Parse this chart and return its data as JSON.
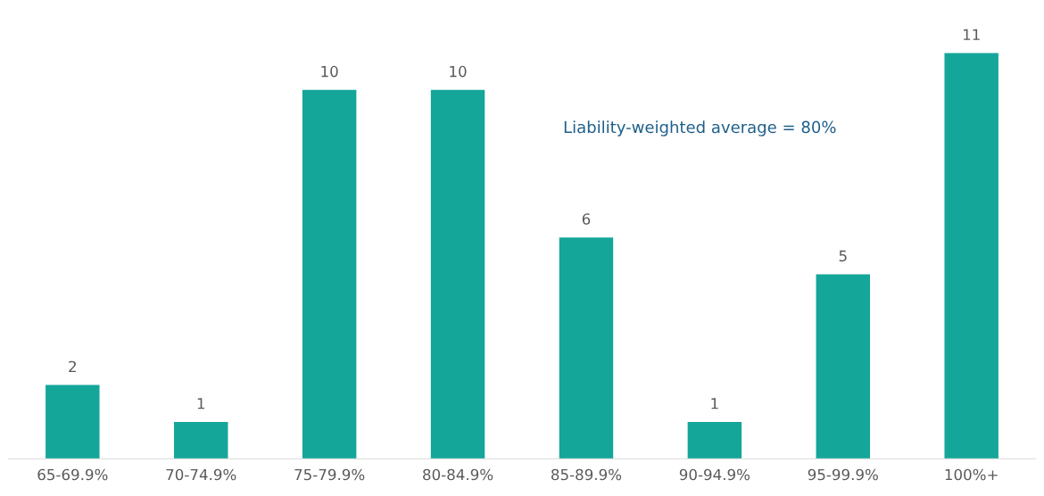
{
  "chart_data": {
    "type": "bar",
    "categories": [
      "65-69.9%",
      "70-74.9%",
      "75-79.9%",
      "80-84.9%",
      "85-89.9%",
      "90-94.9%",
      "95-99.9%",
      "100%+"
    ],
    "values": [
      2,
      1,
      10,
      10,
      6,
      1,
      5,
      11
    ],
    "color": "#14a699",
    "data_labels": true,
    "grid": false,
    "legend": false,
    "tick_labels": "x",
    "annotations": [
      "Liability-weighted average = 80%"
    ]
  }
}
